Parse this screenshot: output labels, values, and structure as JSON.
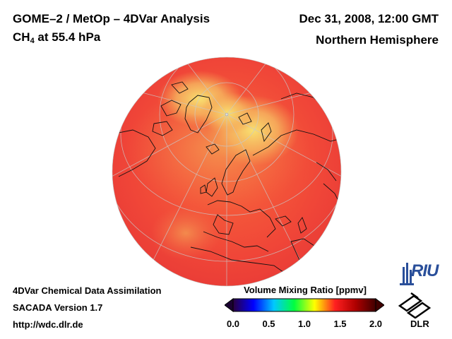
{
  "header": {
    "title_line1": "GOME–2 / MetOp – 4DVar Analysis",
    "species": "CH",
    "species_sub": "4",
    "pressure": " at 55.4 hPa",
    "datetime": "Dec 31, 2008, 12:00 GMT",
    "region": "Northern Hemisphere"
  },
  "footer": {
    "line1": "4DVar Chemical Data Assimilation",
    "line2": "SACADA Version 1.7",
    "url": "http://wdc.dlr.de"
  },
  "colorbar": {
    "title": "Volume Mixing Ratio [ppmv]",
    "min": 0.0,
    "max": 2.0,
    "ticks": [
      "0.0",
      "0.5",
      "1.0",
      "1.5",
      "2.0"
    ],
    "colors": [
      "#2a0040",
      "#0000ff",
      "#00c8ff",
      "#00ff40",
      "#ffff00",
      "#ff2020",
      "#b00000",
      "#400000"
    ]
  },
  "logos": {
    "riu": "RIU",
    "dlr": "DLR"
  },
  "icons": [
    "globe-map",
    "riu-logo-icon",
    "dlr-logo-icon"
  ]
}
